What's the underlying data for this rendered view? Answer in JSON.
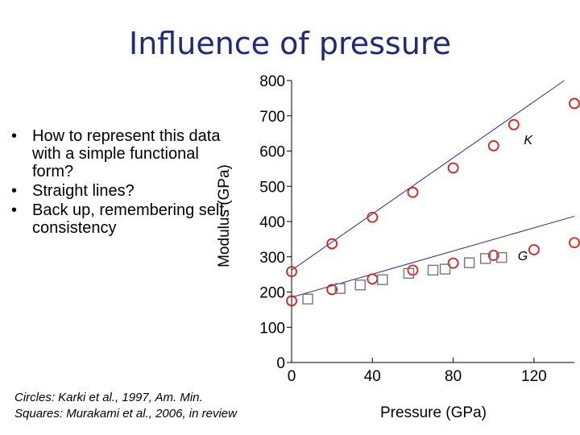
{
  "slide": {
    "title": "Influence of pressure",
    "bullet_marker": "•",
    "bullets": [
      "How to represent this data with a simple functional form?",
      "Straight lines?",
      "Back up, remembering self-consistency"
    ],
    "caption": [
      "Circles: Karki et al., 1997, Am. Min.",
      "Squares: Murakami et al., 2006, in review"
    ]
  },
  "chart_data": {
    "type": "scatter",
    "xlabel": "Pressure (GPa)",
    "ylabel": "Modulus (GPa)",
    "xlim": [
      0,
      140
    ],
    "ylim": [
      0,
      800
    ],
    "xticks": [
      0,
      40,
      80,
      120
    ],
    "yticks": [
      0,
      100,
      200,
      300,
      400,
      500,
      600,
      700,
      800
    ],
    "grid": false,
    "colors": {
      "circles": "#e0201c",
      "squares": "#777777",
      "lines": "#2a2aa8",
      "title": "#1f2a7a"
    },
    "series": [
      {
        "name": "K",
        "marker": "circle",
        "points": [
          [
            0,
            258
          ],
          [
            20,
            337
          ],
          [
            40,
            412
          ],
          [
            60,
            483
          ],
          [
            80,
            552
          ],
          [
            100,
            615
          ],
          [
            110,
            675
          ],
          [
            140,
            735
          ]
        ]
      },
      {
        "name": "G",
        "marker": "circle",
        "points": [
          [
            0,
            175
          ],
          [
            20,
            207
          ],
          [
            40,
            237
          ],
          [
            60,
            262
          ],
          [
            80,
            282
          ],
          [
            100,
            304
          ],
          [
            120,
            320
          ],
          [
            140,
            340
          ]
        ]
      },
      {
        "name": "",
        "marker": "square",
        "points": [
          [
            8,
            180
          ],
          [
            24,
            210
          ],
          [
            34,
            220
          ],
          [
            45,
            235
          ],
          [
            58,
            253
          ],
          [
            70,
            262
          ],
          [
            76,
            265
          ],
          [
            88,
            283
          ],
          [
            96,
            295
          ],
          [
            104,
            298
          ]
        ]
      }
    ],
    "fit_lines": [
      {
        "series": "K",
        "from": [
          0,
          262
        ],
        "to": [
          135,
          800
        ]
      },
      {
        "series": "G",
        "from": [
          0,
          185
        ],
        "to": [
          140,
          415
        ]
      }
    ],
    "series_labels": [
      {
        "text": "K",
        "at": [
          115,
          620
        ]
      },
      {
        "text": "G",
        "at": [
          112,
          290
        ]
      }
    ]
  }
}
